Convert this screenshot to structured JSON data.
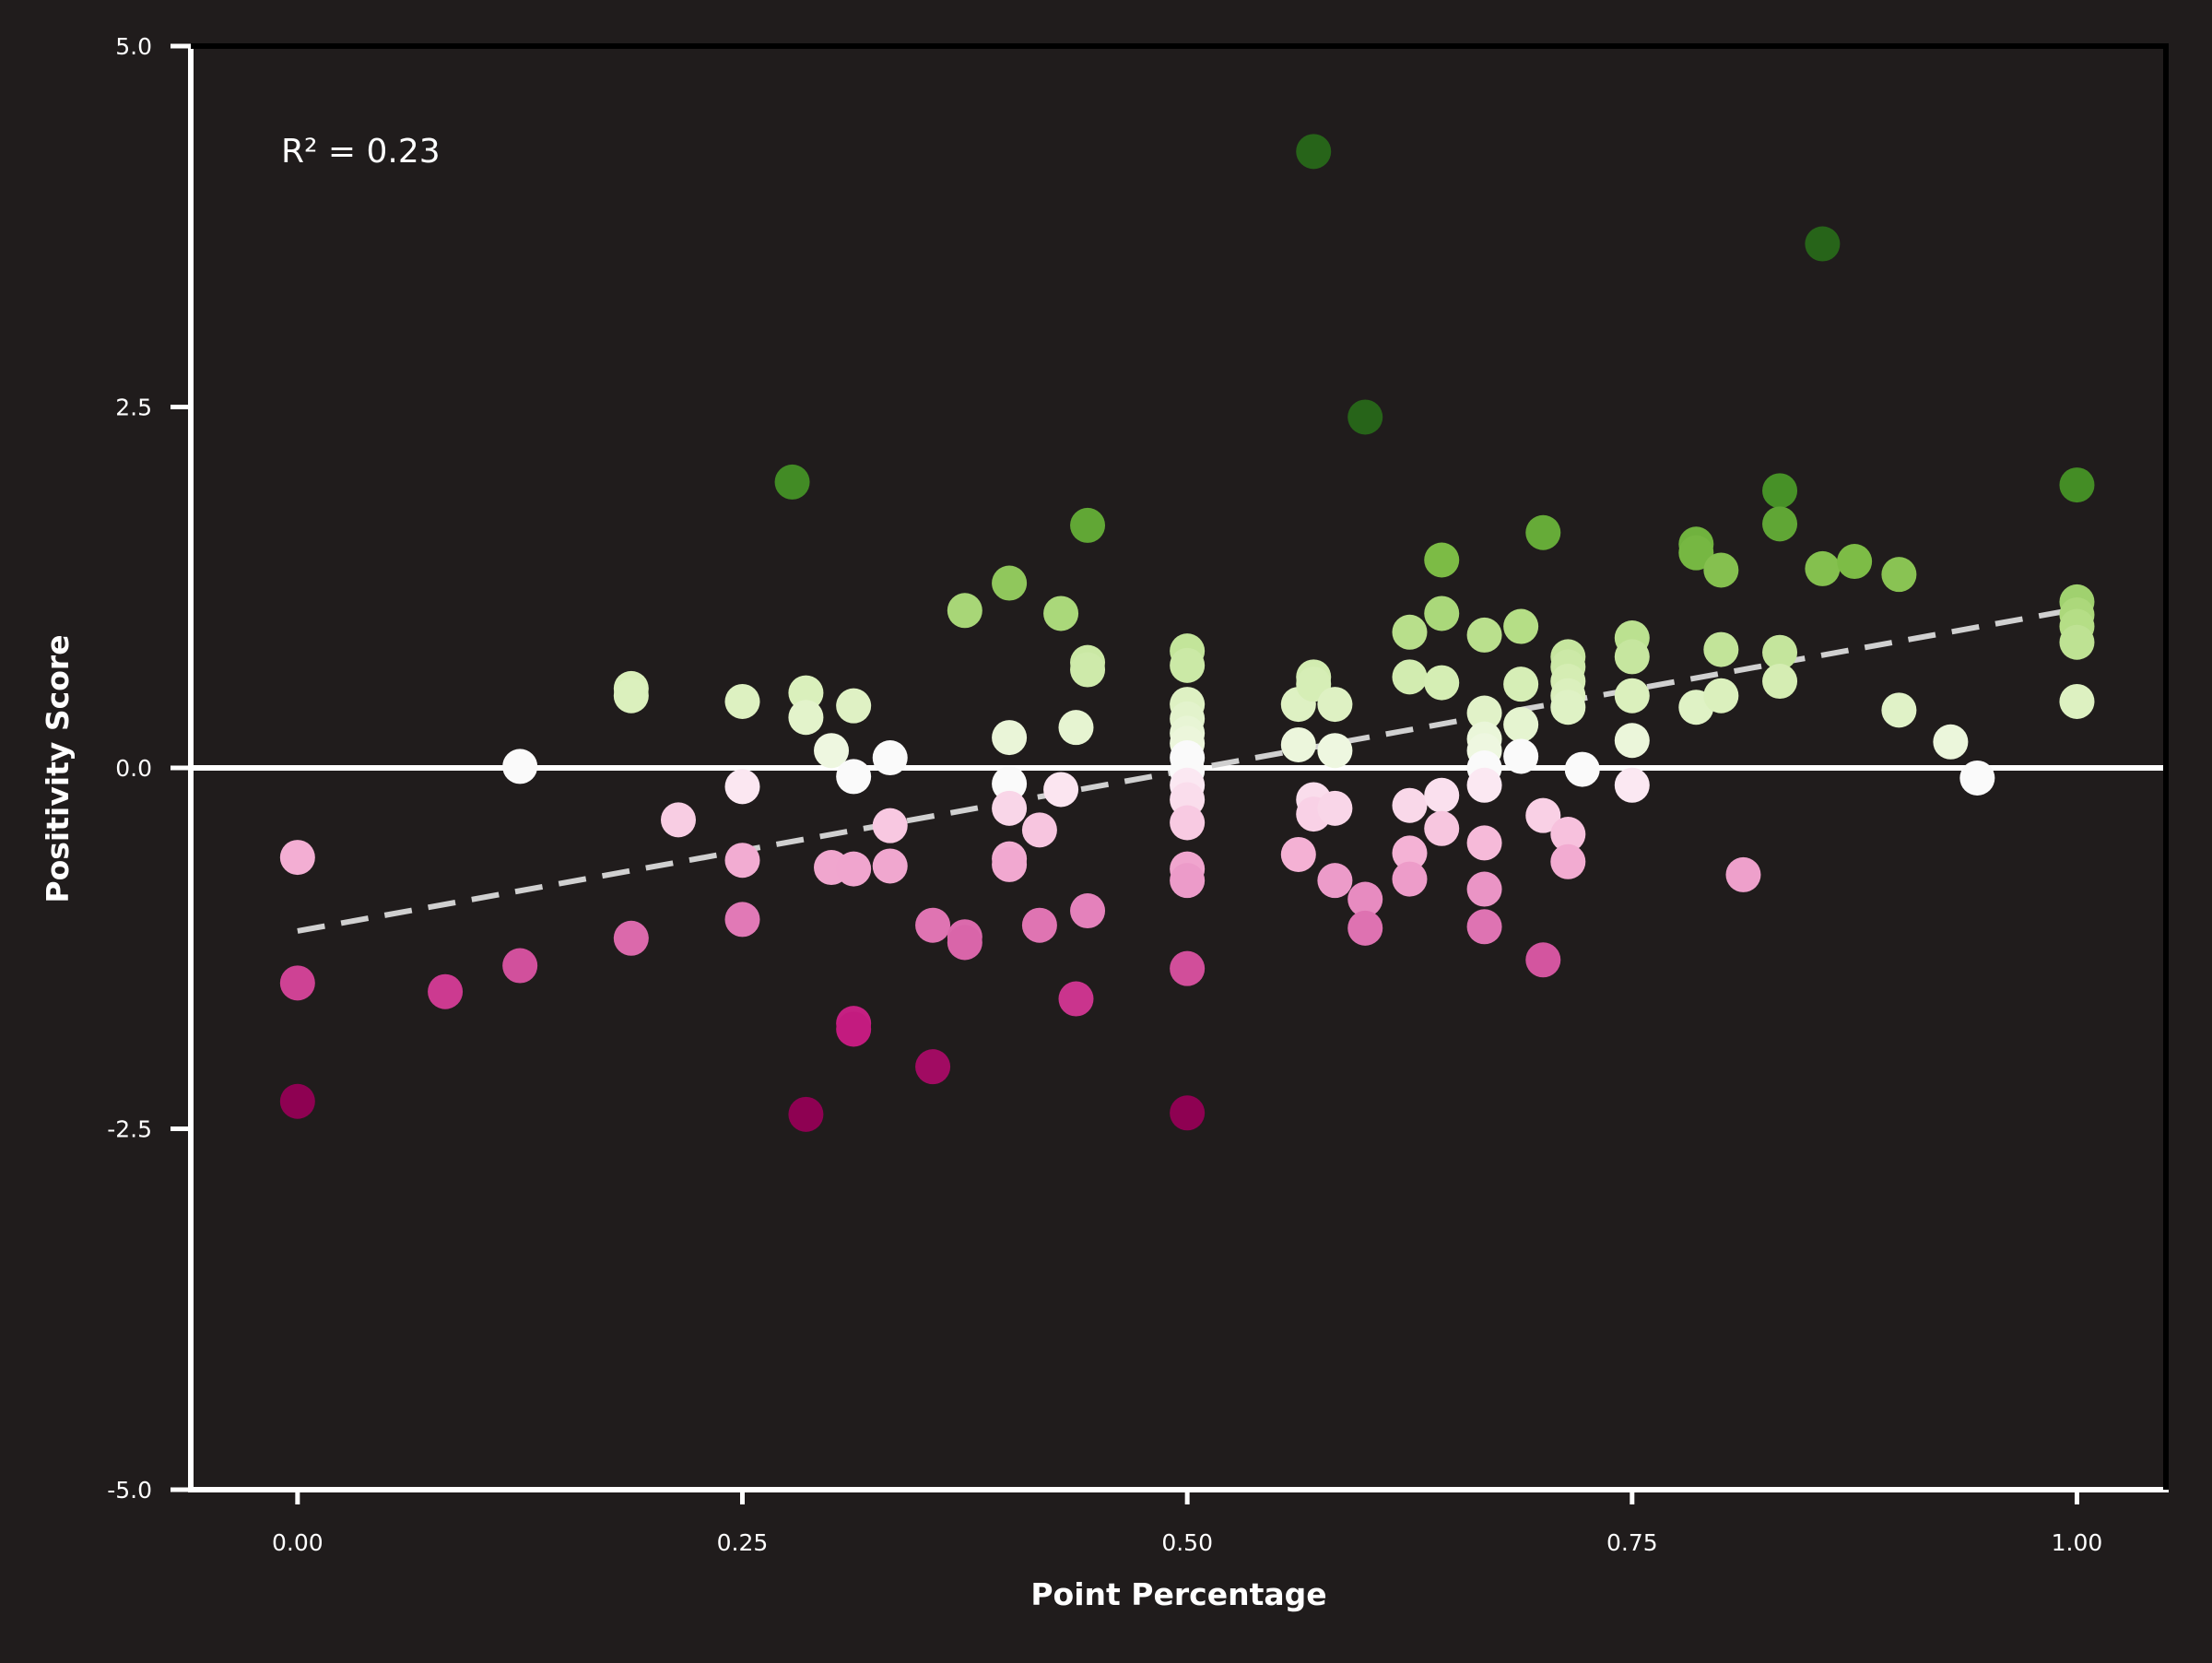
{
  "chart_data": {
    "type": "scatter",
    "title": "",
    "xlabel": "Point Percentage",
    "ylabel": "Positivity Score",
    "xlim": [
      -0.06,
      1.05
    ],
    "ylim": [
      -5.0,
      5.0
    ],
    "xticks": [
      {
        "value": 0.0,
        "label": "0.00"
      },
      {
        "value": 0.25,
        "label": "0.25"
      },
      {
        "value": 0.5,
        "label": "0.50"
      },
      {
        "value": 0.75,
        "label": "0.75"
      },
      {
        "value": 1.0,
        "label": "1.00"
      }
    ],
    "yticks": [
      {
        "value": 5.0,
        "label": "5.0"
      },
      {
        "value": 2.5,
        "label": "2.5"
      },
      {
        "value": 0.0,
        "label": "0.0"
      },
      {
        "value": -2.5,
        "label": "-2.5"
      },
      {
        "value": -5.0,
        "label": "-5.0"
      }
    ],
    "annotation": "R² = 0.23",
    "zero_line": 0.0,
    "trend_line": {
      "x": [
        0.0,
        1.0
      ],
      "y": [
        -1.13,
        1.1
      ]
    },
    "colors": {
      "background": "#201c1c",
      "axis": "#ffffff",
      "trend": "#d0d0d0",
      "colormap_negative": [
        "#fbe8f2",
        "#f6b8d8",
        "#e585bd",
        "#d14f9b",
        "#c41c80",
        "#8e0152"
      ],
      "colormap_positive": [
        "#eef7e0",
        "#d8efb8",
        "#b3dd84",
        "#7cbb45",
        "#4a9628",
        "#276419"
      ]
    },
    "points": [
      [
        0.0,
        -0.62
      ],
      [
        0.0,
        -1.49
      ],
      [
        0.0,
        -2.31
      ],
      [
        0.083,
        -1.55
      ],
      [
        0.125,
        0.01
      ],
      [
        0.125,
        -1.37
      ],
      [
        0.1875,
        0.55
      ],
      [
        0.1875,
        0.5
      ],
      [
        0.1875,
        -1.18
      ],
      [
        0.214,
        -0.36
      ],
      [
        0.25,
        0.46
      ],
      [
        0.25,
        -0.13
      ],
      [
        0.25,
        -0.64
      ],
      [
        0.25,
        -1.05
      ],
      [
        0.278,
        1.98
      ],
      [
        0.2857,
        0.52
      ],
      [
        0.2857,
        0.35
      ],
      [
        0.2857,
        -2.4
      ],
      [
        0.3,
        0.12
      ],
      [
        0.3,
        -0.69
      ],
      [
        0.3125,
        0.43
      ],
      [
        0.3125,
        -0.06
      ],
      [
        0.3125,
        -0.7
      ],
      [
        0.3125,
        -1.77
      ],
      [
        0.3125,
        -1.81
      ],
      [
        0.333,
        0.07
      ],
      [
        0.333,
        -0.4
      ],
      [
        0.333,
        -0.68
      ],
      [
        0.357,
        -1.09
      ],
      [
        0.357,
        -2.07
      ],
      [
        0.375,
        1.09
      ],
      [
        0.375,
        -1.17
      ],
      [
        0.375,
        -1.21
      ],
      [
        0.4,
        1.28
      ],
      [
        0.4,
        0.21
      ],
      [
        0.4,
        -0.11
      ],
      [
        0.4,
        -0.28
      ],
      [
        0.4,
        -0.63
      ],
      [
        0.4,
        -0.67
      ],
      [
        0.417,
        -0.43
      ],
      [
        0.417,
        -1.09
      ],
      [
        0.429,
        1.07
      ],
      [
        0.429,
        -0.15
      ],
      [
        0.4375,
        0.28
      ],
      [
        0.4375,
        -1.6
      ],
      [
        0.444,
        1.68
      ],
      [
        0.444,
        0.73
      ],
      [
        0.444,
        0.68
      ],
      [
        0.444,
        -0.99
      ],
      [
        0.5,
        0.81
      ],
      [
        0.5,
        0.71
      ],
      [
        0.5,
        0.44
      ],
      [
        0.5,
        0.34
      ],
      [
        0.5,
        0.24
      ],
      [
        0.5,
        0.17
      ],
      [
        0.5,
        0.07
      ],
      [
        0.5,
        -0.02
      ],
      [
        0.5,
        -0.12
      ],
      [
        0.5,
        -0.22
      ],
      [
        0.5,
        -0.38
      ],
      [
        0.5,
        -0.7
      ],
      [
        0.5,
        -0.78
      ],
      [
        0.5,
        -1.39
      ],
      [
        0.5,
        -2.39
      ],
      [
        0.5625,
        0.44
      ],
      [
        0.5625,
        0.16
      ],
      [
        0.5625,
        -0.6
      ],
      [
        0.571,
        4.27
      ],
      [
        0.571,
        0.63
      ],
      [
        0.571,
        0.58
      ],
      [
        0.571,
        -0.22
      ],
      [
        0.571,
        -0.32
      ],
      [
        0.583,
        0.44
      ],
      [
        0.583,
        0.12
      ],
      [
        0.583,
        -0.28
      ],
      [
        0.583,
        -0.78
      ],
      [
        0.6,
        2.43
      ],
      [
        0.6,
        -0.91
      ],
      [
        0.6,
        -1.11
      ],
      [
        0.625,
        0.94
      ],
      [
        0.625,
        0.63
      ],
      [
        0.625,
        -0.26
      ],
      [
        0.625,
        -0.59
      ],
      [
        0.625,
        -0.77
      ],
      [
        0.643,
        1.44
      ],
      [
        0.643,
        1.07
      ],
      [
        0.643,
        0.59
      ],
      [
        0.643,
        -0.19
      ],
      [
        0.643,
        -0.42
      ],
      [
        0.667,
        0.92
      ],
      [
        0.667,
        0.38
      ],
      [
        0.667,
        0.2
      ],
      [
        0.667,
        0.12
      ],
      [
        0.667,
        0.0
      ],
      [
        0.667,
        -0.12
      ],
      [
        0.667,
        -0.52
      ],
      [
        0.667,
        -0.84
      ],
      [
        0.667,
        -1.1
      ],
      [
        0.6875,
        0.98
      ],
      [
        0.6875,
        0.58
      ],
      [
        0.6875,
        0.3
      ],
      [
        0.6875,
        0.08
      ],
      [
        0.7,
        1.63
      ],
      [
        0.7,
        -0.33
      ],
      [
        0.7,
        -1.33
      ],
      [
        0.714,
        0.77
      ],
      [
        0.714,
        0.7
      ],
      [
        0.714,
        0.6
      ],
      [
        0.714,
        0.5
      ],
      [
        0.714,
        0.42
      ],
      [
        0.714,
        -0.46
      ],
      [
        0.714,
        -0.65
      ],
      [
        0.722,
        -0.01
      ],
      [
        0.75,
        0.9
      ],
      [
        0.75,
        0.77
      ],
      [
        0.75,
        0.5
      ],
      [
        0.75,
        0.19
      ],
      [
        0.75,
        -0.12
      ],
      [
        0.786,
        1.55
      ],
      [
        0.786,
        1.49
      ],
      [
        0.786,
        0.42
      ],
      [
        0.8,
        1.37
      ],
      [
        0.8,
        0.82
      ],
      [
        0.8,
        0.5
      ],
      [
        0.8125,
        -0.74
      ],
      [
        0.833,
        1.92
      ],
      [
        0.833,
        1.69
      ],
      [
        0.833,
        0.8
      ],
      [
        0.833,
        0.6
      ],
      [
        0.857,
        3.63
      ],
      [
        0.857,
        1.38
      ],
      [
        0.875,
        1.43
      ],
      [
        0.9,
        1.34
      ],
      [
        0.9,
        0.4
      ],
      [
        0.929,
        0.18
      ],
      [
        0.944,
        -0.07
      ],
      [
        1.0,
        1.96
      ],
      [
        1.0,
        1.15
      ],
      [
        1.0,
        1.06
      ],
      [
        1.0,
        0.98
      ],
      [
        1.0,
        0.87
      ],
      [
        1.0,
        0.46
      ]
    ]
  }
}
